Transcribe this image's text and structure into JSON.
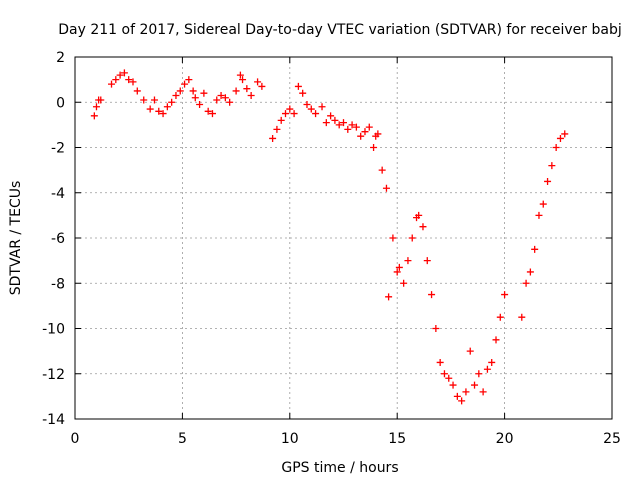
{
  "chart_data": {
    "type": "scatter",
    "title": "Day 211 of 2017, Sidereal Day-to-day VTEC variation (SDTVAR) for receiver babj",
    "xlabel": "GPS time / hours",
    "ylabel": "SDTVAR / TECUs",
    "xlim": [
      0,
      25
    ],
    "ylim": [
      -14,
      2
    ],
    "x_ticks": [
      0,
      5,
      10,
      15,
      20,
      25
    ],
    "y_ticks": [
      -14,
      -12,
      -10,
      -8,
      -6,
      -4,
      -2,
      0,
      2
    ],
    "grid": true,
    "marker": "+",
    "color": "#ff0000",
    "series": [
      {
        "name": "",
        "x": [
          0.9,
          1.0,
          1.1,
          1.2,
          1.7,
          1.9,
          2.1,
          2.3,
          2.5,
          2.7,
          2.9,
          3.2,
          3.5,
          3.7,
          3.9,
          4.1,
          4.3,
          4.5,
          4.7,
          4.9,
          5.1,
          5.3,
          5.5,
          5.6,
          5.8,
          6.0,
          6.2,
          6.4,
          6.6,
          6.8,
          7.0,
          7.2,
          7.5,
          7.7,
          7.8,
          8.0,
          8.2,
          8.5,
          8.7,
          9.2,
          9.4,
          9.6,
          9.8,
          10.0,
          10.2,
          10.4,
          10.6,
          10.8,
          11.0,
          11.2,
          11.5,
          11.7,
          11.9,
          12.1,
          12.3,
          12.5,
          12.7,
          12.9,
          13.1,
          13.3,
          13.5,
          13.7,
          13.9,
          14.0,
          14.1,
          14.3,
          14.5,
          14.6,
          14.8,
          15.0,
          15.1,
          15.3,
          15.5,
          15.7,
          15.9,
          16.0,
          16.2,
          16.4,
          16.6,
          16.8,
          17.0,
          17.2,
          17.4,
          17.6,
          17.8,
          18.0,
          18.2,
          18.4,
          18.6,
          18.8,
          19.0,
          19.2,
          19.4,
          19.6,
          19.8,
          20.0,
          20.8,
          21.0,
          21.2,
          21.4,
          21.6,
          21.8,
          22.0,
          22.2,
          22.4,
          22.6,
          22.8
        ],
        "y": [
          -0.6,
          -0.2,
          0.1,
          0.1,
          0.8,
          1.0,
          1.2,
          1.3,
          1.0,
          0.9,
          0.5,
          0.1,
          -0.3,
          0.1,
          -0.4,
          -0.5,
          -0.2,
          0.0,
          0.3,
          0.5,
          0.8,
          1.0,
          0.5,
          0.2,
          -0.1,
          0.4,
          -0.4,
          -0.5,
          0.1,
          0.3,
          0.2,
          0.0,
          0.5,
          1.2,
          1.0,
          0.6,
          0.3,
          0.9,
          0.7,
          -1.6,
          -1.2,
          -0.8,
          -0.5,
          -0.3,
          -0.5,
          0.7,
          0.4,
          -0.1,
          -0.3,
          -0.5,
          -0.2,
          -0.9,
          -0.6,
          -0.8,
          -1.0,
          -0.9,
          -1.2,
          -1.0,
          -1.1,
          -1.5,
          -1.3,
          -1.1,
          -2.0,
          -1.5,
          -1.4,
          -3.0,
          -3.8,
          -8.6,
          -6.0,
          -7.5,
          -7.3,
          -8.0,
          -7.0,
          -6.0,
          -5.1,
          -5.0,
          -5.5,
          -7.0,
          -8.5,
          -10.0,
          -11.5,
          -12.0,
          -12.2,
          -12.5,
          -13.0,
          -13.2,
          -12.8,
          -11.0,
          -12.5,
          -12.0,
          -12.8,
          -11.8,
          -11.5,
          -10.5,
          -9.5,
          -8.5,
          -9.5,
          -8.0,
          -7.5,
          -6.5,
          -5.0,
          -4.5,
          -3.5,
          -2.8,
          -2.0,
          -1.6,
          -1.4
        ]
      }
    ]
  }
}
